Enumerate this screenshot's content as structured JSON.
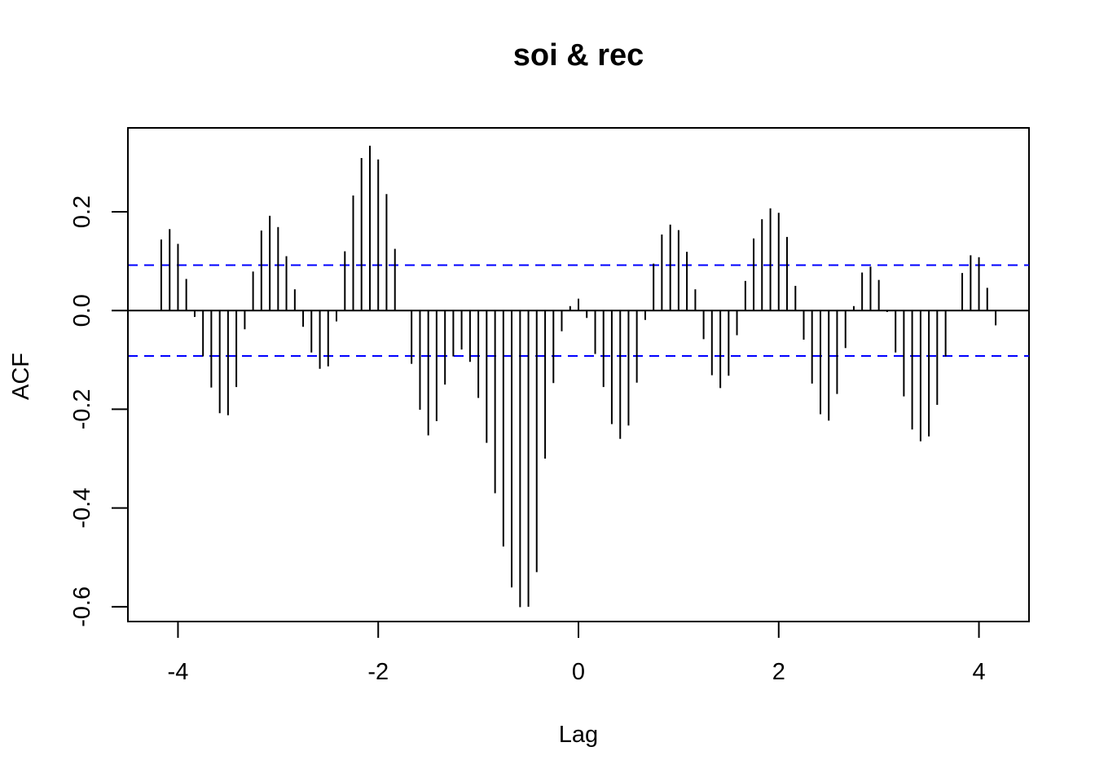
{
  "chart_data": {
    "type": "bar",
    "title": "soi & rec",
    "xlabel": "Lag",
    "ylabel": "ACF",
    "xlim": [
      -4.5,
      4.5
    ],
    "ylim": [
      -0.63,
      0.37
    ],
    "x_ticks": [
      -4,
      -2,
      0,
      2,
      4
    ],
    "x_tick_labels": [
      "-4",
      "-2",
      "0",
      "2",
      "4"
    ],
    "y_ticks": [
      -0.6,
      -0.4,
      -0.2,
      0.0,
      0.2
    ],
    "y_tick_labels": [
      "-0.6",
      "-0.4",
      "-0.2",
      "0.0",
      "0.2"
    ],
    "confidence_band": 0.092,
    "colors": {
      "bars": "#000000",
      "ci_lines": "#0000ff",
      "frame": "#000000"
    },
    "lags": [
      -4.167,
      -4.083,
      -4.0,
      -3.917,
      -3.833,
      -3.75,
      -3.667,
      -3.583,
      -3.5,
      -3.417,
      -3.333,
      -3.25,
      -3.167,
      -3.083,
      -3.0,
      -2.917,
      -2.833,
      -2.75,
      -2.667,
      -2.583,
      -2.5,
      -2.417,
      -2.333,
      -2.25,
      -2.167,
      -2.083,
      -2.0,
      -1.917,
      -1.833,
      -1.75,
      -1.667,
      -1.583,
      -1.5,
      -1.417,
      -1.333,
      -1.25,
      -1.167,
      -1.083,
      -1.0,
      -0.917,
      -0.833,
      -0.75,
      -0.667,
      -0.583,
      -0.5,
      -0.417,
      -0.333,
      -0.25,
      -0.167,
      -0.083,
      0.0,
      0.083,
      0.167,
      0.25,
      0.333,
      0.417,
      0.5,
      0.583,
      0.667,
      0.75,
      0.833,
      0.917,
      1.0,
      1.083,
      1.167,
      1.25,
      1.333,
      1.417,
      1.5,
      1.583,
      1.667,
      1.75,
      1.833,
      1.917,
      2.0,
      2.083,
      2.167,
      2.25,
      2.333,
      2.417,
      2.5,
      2.583,
      2.667,
      2.75,
      2.833,
      2.917,
      3.0,
      3.083,
      3.167,
      3.25,
      3.333,
      3.417,
      3.5,
      3.583,
      3.667,
      3.75,
      3.833,
      3.917,
      4.0,
      4.083,
      4.167
    ],
    "values": [
      0.144,
      0.165,
      0.135,
      0.064,
      -0.013,
      -0.093,
      -0.156,
      -0.208,
      -0.212,
      -0.155,
      -0.038,
      0.079,
      0.162,
      0.192,
      0.169,
      0.11,
      0.043,
      -0.033,
      -0.085,
      -0.118,
      -0.113,
      -0.022,
      0.12,
      0.233,
      0.309,
      0.334,
      0.306,
      0.236,
      0.125,
      -0.001,
      -0.108,
      -0.201,
      -0.253,
      -0.224,
      -0.15,
      -0.093,
      -0.079,
      -0.104,
      -0.177,
      -0.268,
      -0.37,
      -0.478,
      -0.561,
      -0.601,
      -0.6,
      -0.53,
      -0.3,
      -0.147,
      -0.042,
      0.009,
      0.024,
      -0.015,
      -0.088,
      -0.155,
      -0.23,
      -0.26,
      -0.233,
      -0.146,
      -0.019,
      0.095,
      0.154,
      0.174,
      0.163,
      0.119,
      0.043,
      -0.058,
      -0.131,
      -0.157,
      -0.132,
      -0.05,
      0.06,
      0.146,
      0.185,
      0.207,
      0.198,
      0.149,
      0.05,
      -0.059,
      -0.148,
      -0.21,
      -0.223,
      -0.169,
      -0.076,
      0.009,
      0.077,
      0.089,
      0.062,
      -0.003,
      -0.085,
      -0.174,
      -0.241,
      -0.265,
      -0.255,
      -0.191,
      -0.093,
      0.001,
      0.076,
      0.112,
      0.108,
      0.046,
      -0.03
    ]
  }
}
